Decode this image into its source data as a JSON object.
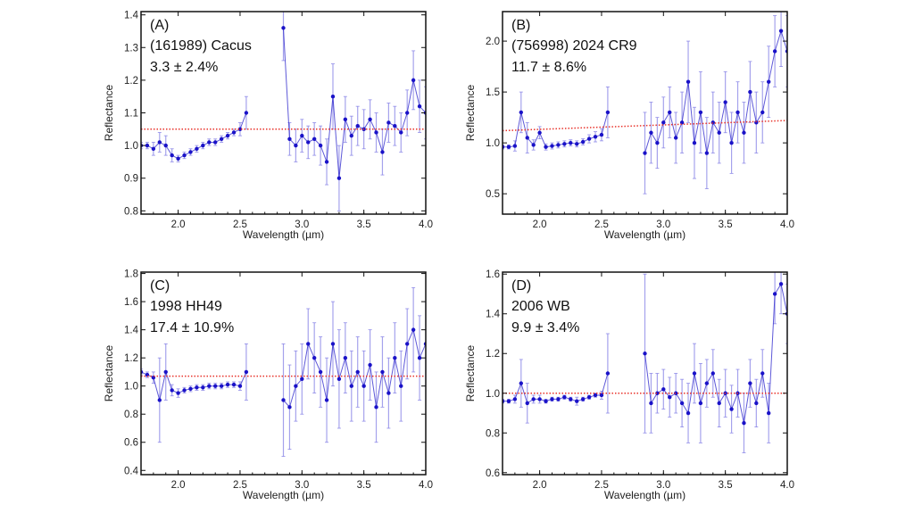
{
  "chart_data": [
    {
      "type": "scatter",
      "panel_label": "(A)",
      "object": "(161989) Cacus",
      "value_text": "3.3 ± 2.4%",
      "xlabel": "Wavelength (µm)",
      "ylabel": "Reflectance",
      "xlim": [
        1.7,
        4.0
      ],
      "ylim": [
        0.79,
        1.41
      ],
      "xticks": [
        "2.0",
        "2.5",
        "3.0",
        "3.5",
        "4.0"
      ],
      "yticks": [
        "0.8",
        "0.9",
        "1.0",
        "1.1",
        "1.2",
        "1.3",
        "1.4"
      ],
      "continuum": {
        "x": [
          1.7,
          4.0
        ],
        "y": [
          1.05,
          1.05
        ],
        "color": "#e8322a"
      },
      "x": [
        1.7,
        1.75,
        1.8,
        1.85,
        1.9,
        1.95,
        2.0,
        2.05,
        2.1,
        2.15,
        2.2,
        2.25,
        2.3,
        2.35,
        2.4,
        2.45,
        2.5,
        2.55,
        2.85,
        2.9,
        2.95,
        3.0,
        3.05,
        3.1,
        3.15,
        3.2,
        3.25,
        3.3,
        3.35,
        3.4,
        3.45,
        3.5,
        3.55,
        3.6,
        3.65,
        3.7,
        3.75,
        3.8,
        3.85,
        3.9,
        3.95,
        4.0
      ],
      "y": [
        1.0,
        1.0,
        0.99,
        1.01,
        1.0,
        0.97,
        0.96,
        0.97,
        0.98,
        0.99,
        1.0,
        1.01,
        1.01,
        1.02,
        1.03,
        1.04,
        1.05,
        1.1,
        1.36,
        1.02,
        1.0,
        1.03,
        1.01,
        1.02,
        1.0,
        0.95,
        1.15,
        0.9,
        1.08,
        1.03,
        1.06,
        1.05,
        1.08,
        1.04,
        0.98,
        1.07,
        1.06,
        1.04,
        1.1,
        1.2,
        1.12,
        1.1
      ],
      "err": [
        0.01,
        0.01,
        0.02,
        0.03,
        0.03,
        0.02,
        0.01,
        0.01,
        0.01,
        0.01,
        0.01,
        0.01,
        0.01,
        0.01,
        0.01,
        0.01,
        0.02,
        0.05,
        0.1,
        0.05,
        0.05,
        0.05,
        0.05,
        0.05,
        0.06,
        0.07,
        0.1,
        0.1,
        0.07,
        0.06,
        0.06,
        0.06,
        0.06,
        0.06,
        0.07,
        0.06,
        0.06,
        0.06,
        0.07,
        0.09,
        0.08,
        0.08
      ]
    },
    {
      "type": "scatter",
      "panel_label": "(B)",
      "object": "(756998) 2024 CR9",
      "value_text": "11.7 ± 8.6%",
      "xlabel": "Wavelength (µm)",
      "ylabel": "Reflectance",
      "xlim": [
        1.7,
        4.0
      ],
      "ylim": [
        0.3,
        2.29
      ],
      "xticks": [
        "2.0",
        "2.5",
        "3.0",
        "3.5",
        "4.0"
      ],
      "yticks": [
        "0.5",
        "1.0",
        "1.5",
        "2.0"
      ],
      "continuum": {
        "x": [
          1.7,
          4.0
        ],
        "y": [
          1.12,
          1.22
        ],
        "color": "#e8322a"
      },
      "x": [
        1.7,
        1.75,
        1.8,
        1.85,
        1.9,
        1.95,
        2.0,
        2.05,
        2.1,
        2.15,
        2.2,
        2.25,
        2.3,
        2.35,
        2.4,
        2.45,
        2.5,
        2.55,
        2.85,
        2.9,
        2.95,
        3.0,
        3.05,
        3.1,
        3.15,
        3.2,
        3.25,
        3.3,
        3.35,
        3.4,
        3.45,
        3.5,
        3.55,
        3.6,
        3.65,
        3.7,
        3.75,
        3.8,
        3.85,
        3.9,
        3.95,
        4.0
      ],
      "y": [
        0.96,
        0.96,
        0.97,
        1.3,
        1.05,
        0.98,
        1.1,
        0.96,
        0.97,
        0.98,
        0.99,
        1.0,
        0.99,
        1.01,
        1.04,
        1.06,
        1.08,
        1.3,
        0.9,
        1.1,
        1.0,
        1.2,
        1.3,
        1.05,
        1.2,
        1.6,
        1.0,
        1.3,
        0.9,
        1.2,
        1.1,
        1.4,
        1.0,
        1.3,
        1.1,
        1.5,
        1.2,
        1.3,
        1.6,
        1.9,
        2.1,
        1.9
      ],
      "err": [
        0.02,
        0.02,
        0.05,
        0.2,
        0.15,
        0.05,
        0.06,
        0.03,
        0.03,
        0.03,
        0.03,
        0.03,
        0.03,
        0.03,
        0.04,
        0.05,
        0.06,
        0.25,
        0.4,
        0.3,
        0.25,
        0.25,
        0.25,
        0.25,
        0.3,
        0.4,
        0.35,
        0.4,
        0.35,
        0.3,
        0.3,
        0.3,
        0.3,
        0.3,
        0.3,
        0.3,
        0.3,
        0.3,
        0.35,
        0.35,
        0.35,
        0.35
      ]
    },
    {
      "type": "scatter",
      "panel_label": "(C)",
      "object": "1998 HH49",
      "value_text": "17.4 ± 10.9%",
      "xlabel": "Wavelength (µm)",
      "ylabel": "Reflectance",
      "xlim": [
        1.7,
        4.0
      ],
      "ylim": [
        0.37,
        1.81
      ],
      "xticks": [
        "2.0",
        "2.5",
        "3.0",
        "3.5",
        "4.0"
      ],
      "yticks": [
        "0.4",
        "0.6",
        "0.8",
        "1.0",
        "1.2",
        "1.4",
        "1.6",
        "1.8"
      ],
      "continuum": {
        "x": [
          1.7,
          4.0
        ],
        "y": [
          1.07,
          1.07
        ],
        "color": "#e8322a"
      },
      "x": [
        1.7,
        1.75,
        1.8,
        1.85,
        1.9,
        1.95,
        2.0,
        2.05,
        2.1,
        2.15,
        2.2,
        2.25,
        2.3,
        2.35,
        2.4,
        2.45,
        2.5,
        2.55,
        2.85,
        2.9,
        2.95,
        3.0,
        3.05,
        3.1,
        3.15,
        3.2,
        3.25,
        3.3,
        3.35,
        3.4,
        3.45,
        3.5,
        3.55,
        3.6,
        3.65,
        3.7,
        3.75,
        3.8,
        3.85,
        3.9,
        3.95,
        4.0
      ],
      "y": [
        1.1,
        1.08,
        1.06,
        0.9,
        1.1,
        0.97,
        0.95,
        0.97,
        0.98,
        0.99,
        0.99,
        1.0,
        1.0,
        1.0,
        1.01,
        1.01,
        1.0,
        1.1,
        0.9,
        0.85,
        1.0,
        1.05,
        1.3,
        1.2,
        1.1,
        0.9,
        1.3,
        1.05,
        1.2,
        1.0,
        1.1,
        1.0,
        1.15,
        0.85,
        1.1,
        0.95,
        1.2,
        1.0,
        1.3,
        1.4,
        1.2,
        1.3
      ],
      "err": [
        0.02,
        0.02,
        0.04,
        0.3,
        0.2,
        0.04,
        0.03,
        0.02,
        0.02,
        0.02,
        0.02,
        0.02,
        0.02,
        0.02,
        0.02,
        0.02,
        0.03,
        0.2,
        0.4,
        0.3,
        0.25,
        0.25,
        0.25,
        0.25,
        0.25,
        0.3,
        0.3,
        0.35,
        0.25,
        0.25,
        0.25,
        0.25,
        0.25,
        0.25,
        0.25,
        0.25,
        0.25,
        0.25,
        0.25,
        0.3,
        0.3,
        0.3
      ]
    },
    {
      "type": "scatter",
      "panel_label": "(D)",
      "object": "2006 WB",
      "value_text": "9.9 ± 3.4%",
      "xlabel": "Wavelength (µm)",
      "ylabel": "Reflectance",
      "xlim": [
        1.7,
        4.0
      ],
      "ylim": [
        0.59,
        1.61
      ],
      "xticks": [
        "2.0",
        "2.5",
        "3.0",
        "3.5",
        "4.0"
      ],
      "yticks": [
        "0.6",
        "0.8",
        "1.0",
        "1.2",
        "1.4",
        "1.6"
      ],
      "continuum": {
        "x": [
          1.7,
          4.0
        ],
        "y": [
          1.0,
          1.0
        ],
        "color": "#e8322a"
      },
      "x": [
        1.7,
        1.75,
        1.8,
        1.85,
        1.9,
        1.95,
        2.0,
        2.05,
        2.1,
        2.15,
        2.2,
        2.25,
        2.3,
        2.35,
        2.4,
        2.45,
        2.5,
        2.55,
        2.85,
        2.9,
        2.95,
        3.0,
        3.05,
        3.1,
        3.15,
        3.2,
        3.25,
        3.3,
        3.35,
        3.4,
        3.45,
        3.5,
        3.55,
        3.6,
        3.65,
        3.7,
        3.75,
        3.8,
        3.85,
        3.9,
        3.95,
        4.0
      ],
      "y": [
        0.96,
        0.96,
        0.97,
        1.05,
        0.95,
        0.97,
        0.97,
        0.96,
        0.97,
        0.97,
        0.98,
        0.97,
        0.96,
        0.97,
        0.98,
        0.99,
        0.99,
        1.1,
        1.2,
        0.95,
        1.0,
        1.02,
        0.98,
        1.0,
        0.95,
        0.9,
        1.1,
        0.95,
        1.05,
        1.1,
        0.95,
        1.0,
        0.92,
        1.0,
        0.85,
        1.05,
        0.95,
        1.1,
        0.9,
        1.5,
        1.55,
        1.4
      ],
      "err": [
        0.01,
        0.01,
        0.02,
        0.12,
        0.1,
        0.02,
        0.02,
        0.01,
        0.01,
        0.01,
        0.01,
        0.01,
        0.02,
        0.01,
        0.01,
        0.01,
        0.02,
        0.2,
        0.4,
        0.15,
        0.1,
        0.1,
        0.1,
        0.1,
        0.12,
        0.15,
        0.15,
        0.2,
        0.12,
        0.12,
        0.12,
        0.12,
        0.12,
        0.12,
        0.15,
        0.12,
        0.12,
        0.12,
        0.15,
        0.15,
        0.15,
        0.15
      ]
    }
  ],
  "colors": {
    "points": "#1a12c8",
    "errorbars": "#8f8be8",
    "continuum": "#e8322a"
  }
}
